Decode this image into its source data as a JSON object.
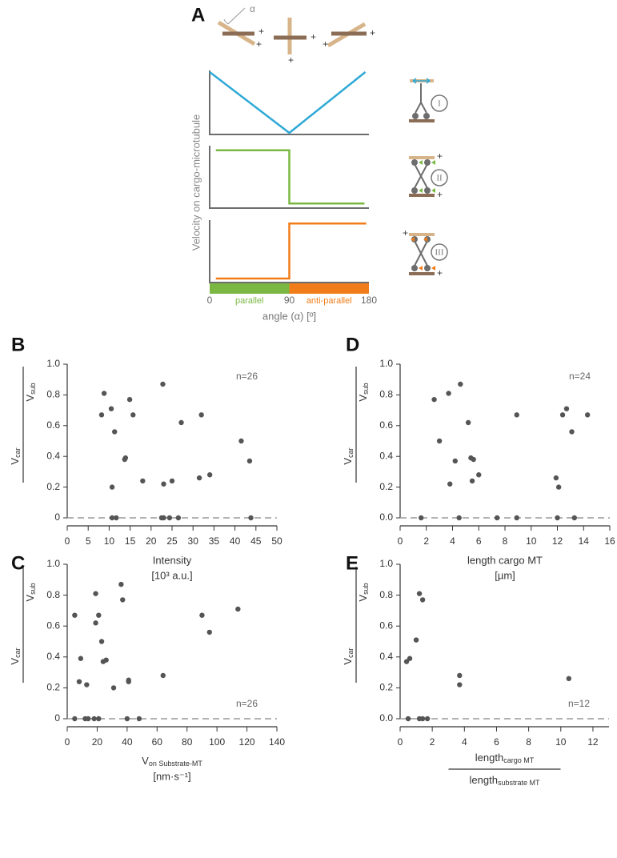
{
  "schematic": {
    "angle_symbol": "α",
    "plus": "+"
  },
  "chart_data": [
    {
      "type": "line",
      "panel": "A",
      "annotation": "I",
      "xlim": [
        0,
        180
      ],
      "ylim": [
        0,
        1
      ],
      "series": [
        {
          "color": "#2fa9d6",
          "x": [
            0,
            90,
            176
          ],
          "values": [
            1,
            0,
            1
          ]
        }
      ]
    },
    {
      "type": "line",
      "annotation": "II",
      "ylabel": "Velocity on cargo-microtubule",
      "xlim": [
        0,
        180
      ],
      "ylim": [
        0,
        1
      ],
      "series": [
        {
          "color": "#7ab843",
          "x": [
            7,
            90,
            90,
            175
          ],
          "values": [
            0.95,
            0.95,
            0.05,
            0.05
          ]
        }
      ]
    },
    {
      "type": "line",
      "annotation": "III",
      "xlabel": [
        "angle (α) [º]"
      ],
      "xlim": [
        0,
        180
      ],
      "ylim": [
        0,
        1
      ],
      "xticks": [
        0,
        90,
        180
      ],
      "bands": [
        {
          "label": "parallel",
          "color": "#7ab843",
          "range": [
            0,
            90
          ]
        },
        {
          "label": "anti-parallel",
          "color": "#f07d1a",
          "range": [
            90,
            180
          ]
        }
      ],
      "series": [
        {
          "color": "#f07d1a",
          "x": [
            7,
            90,
            90,
            177
          ],
          "values": [
            0.04,
            0.04,
            0.97,
            0.97
          ]
        }
      ]
    },
    {
      "type": "scatter",
      "panel": "B",
      "annotation": "n=26",
      "annotation_position": "upper right",
      "ylabel_fraction": [
        {
          "text": "V",
          "sub": "car"
        },
        {
          "text": "V",
          "sub": "sub"
        }
      ],
      "xlabel": [
        "Intensity",
        "[10³ a.u.]"
      ],
      "xlim": [
        0,
        50
      ],
      "xticks": [
        0,
        5,
        10,
        15,
        20,
        25,
        30,
        35,
        40,
        45,
        50
      ],
      "ylim": [
        0,
        1
      ],
      "yticks": [
        0,
        0.2,
        0.4,
        0.6,
        0.8,
        {
          "value": 1,
          "label": "1.0"
        }
      ],
      "hline": 0,
      "color": "#555555",
      "x": [
        8.8,
        8.2,
        10.5,
        11.3,
        10.7,
        10.7,
        11.7,
        13.7,
        13.9,
        14.9,
        15.7,
        18,
        22.8,
        23,
        23,
        24.4,
        25,
        26.5,
        27.2,
        31.5,
        32,
        34,
        41.5,
        43.5,
        43.8,
        22.5
      ],
      "values": [
        0.81,
        0.67,
        0.71,
        0.56,
        0.2,
        0,
        0,
        0.38,
        0.39,
        0.77,
        0.67,
        0.24,
        0.87,
        0.22,
        0,
        0,
        0.24,
        0,
        0.62,
        0.26,
        0.67,
        0.28,
        0.5,
        0.37,
        0,
        0
      ]
    },
    {
      "type": "scatter",
      "panel": "D",
      "annotation": "n=24",
      "annotation_position": "upper right",
      "ylabel_fraction": [
        {
          "text": "V",
          "sub": "car"
        },
        {
          "text": "V",
          "sub": "sub"
        }
      ],
      "xlabel": [
        "length cargo MT",
        "[µm]"
      ],
      "xlim": [
        0,
        16
      ],
      "xticks": [
        0,
        2,
        4,
        6,
        8,
        10,
        12,
        14,
        16
      ],
      "ylim": [
        0,
        1
      ],
      "yticks": [
        {
          "value": 0,
          "label": "0.0"
        },
        0.2,
        0.4,
        0.6,
        0.8,
        {
          "value": 1,
          "label": "1.0"
        }
      ],
      "hline": 0,
      "color": "#555555",
      "x": [
        2.6,
        3,
        3.7,
        3.8,
        4.2,
        4.6,
        4.5,
        5.2,
        5.4,
        5.6,
        5.5,
        6,
        1.6,
        7.4,
        8.9,
        8.9,
        11.9,
        12.1,
        12.4,
        12.7,
        13.1,
        13.3,
        14.3,
        12
      ],
      "values": [
        0.77,
        0.5,
        0.81,
        0.22,
        0.37,
        0.87,
        0,
        0.62,
        0.39,
        0.38,
        0.24,
        0.28,
        0,
        0,
        0.67,
        0,
        0.26,
        0.2,
        0.67,
        0.71,
        0.56,
        0,
        0.67,
        0
      ]
    },
    {
      "type": "scatter",
      "panel": "C",
      "annotation": "n=26",
      "annotation_position": "lower right",
      "ylabel_fraction": [
        {
          "text": "V",
          "sub": "car"
        },
        {
          "text": "V",
          "sub": "sub"
        }
      ],
      "xlabel": [
        {
          "text": "V",
          "sub": "on Substrate-MT"
        },
        "[nm·s⁻¹]"
      ],
      "xlim": [
        0,
        140
      ],
      "xticks": [
        0,
        20,
        40,
        60,
        80,
        100,
        120,
        140
      ],
      "ylim": [
        0,
        1
      ],
      "yticks": [
        0,
        0.2,
        0.4,
        0.6,
        0.8,
        {
          "value": 1,
          "label": "1.0"
        }
      ],
      "hline": 0,
      "color": "#555555",
      "x": [
        5,
        8,
        9,
        13,
        19,
        19,
        21,
        23,
        24,
        26,
        31,
        36,
        37,
        41,
        41,
        64,
        90,
        95,
        114,
        5,
        12,
        14,
        18,
        21,
        40,
        48
      ],
      "values": [
        0.67,
        0.24,
        0.39,
        0.22,
        0.81,
        0.62,
        0.67,
        0.5,
        0.37,
        0.38,
        0.2,
        0.87,
        0.77,
        0.24,
        0.25,
        0.28,
        0.67,
        0.56,
        0.71,
        0,
        0,
        0,
        0,
        0,
        0,
        0
      ]
    },
    {
      "type": "scatter",
      "panel": "E",
      "annotation": "n=12",
      "annotation_position": "lower right",
      "ylabel_fraction": [
        {
          "text": "V",
          "sub": "car"
        },
        {
          "text": "V",
          "sub": "sub"
        }
      ],
      "xlabel_fraction": [
        {
          "text": "length",
          "sub": "cargo MT"
        },
        {
          "text": "length",
          "sub": "substrate MT"
        }
      ],
      "xlim": [
        0,
        13
      ],
      "xticks": [
        0,
        2,
        4,
        6,
        8,
        10,
        12
      ],
      "ylim": [
        0,
        1
      ],
      "yticks": [
        {
          "value": 0,
          "label": "0.0"
        },
        0.2,
        0.4,
        0.6,
        0.8,
        {
          "value": 1,
          "label": "1.0"
        }
      ],
      "hline": 0,
      "color": "#555555",
      "x": [
        0.4,
        0.6,
        0.5,
        1,
        1.2,
        1.4,
        1.2,
        1.4,
        1.7,
        3.7,
        3.7,
        10.5
      ],
      "values": [
        0.37,
        0.39,
        0,
        0.51,
        0.81,
        0.77,
        0,
        0,
        0,
        0.28,
        0.22,
        0.26
      ]
    }
  ]
}
